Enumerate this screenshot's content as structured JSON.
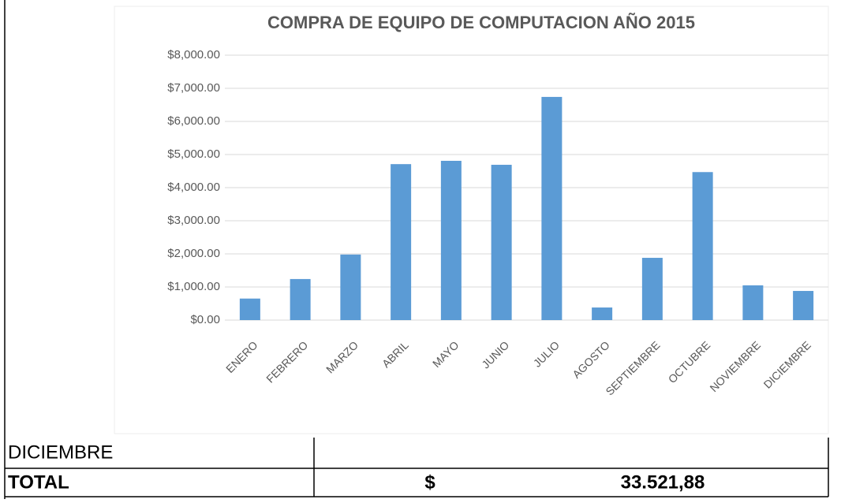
{
  "chart_data": {
    "type": "bar",
    "title": "COMPRA DE EQUIPO DE COMPUTACION AÑO 2015",
    "categories": [
      "ENERO",
      "FEBRERO",
      "MARZO",
      "ABRIL",
      "MAYO",
      "JUNIO",
      "JULIO",
      "AGOSTO",
      "SEPTIEMBRE",
      "OCTUBRE",
      "NOVIEMBRE",
      "DICIEMBRE"
    ],
    "values": [
      650,
      1240,
      1980,
      4710,
      4810,
      4690,
      6740,
      380,
      1880,
      4470,
      1050,
      880
    ],
    "color": "#5b9bd5",
    "ylim": [
      0,
      8000
    ],
    "yticks": [
      {
        "value": 0,
        "label": "$0.00"
      },
      {
        "value": 1000,
        "label": "$1,000.00"
      },
      {
        "value": 2000,
        "label": "$2,000.00"
      },
      {
        "value": 3000,
        "label": "$3,000.00"
      },
      {
        "value": 4000,
        "label": "$4,000.00"
      },
      {
        "value": 5000,
        "label": "$5,000.00"
      },
      {
        "value": 6000,
        "label": "$6,000.00"
      },
      {
        "value": 7000,
        "label": "$7,000.00"
      },
      {
        "value": 8000,
        "label": "$8,000.00"
      }
    ],
    "grid": true
  },
  "table": {
    "rows": [
      [
        "DICIEMBRE",
        ""
      ],
      [
        "TOTAL",
        "$",
        "33.521,88"
      ]
    ]
  }
}
